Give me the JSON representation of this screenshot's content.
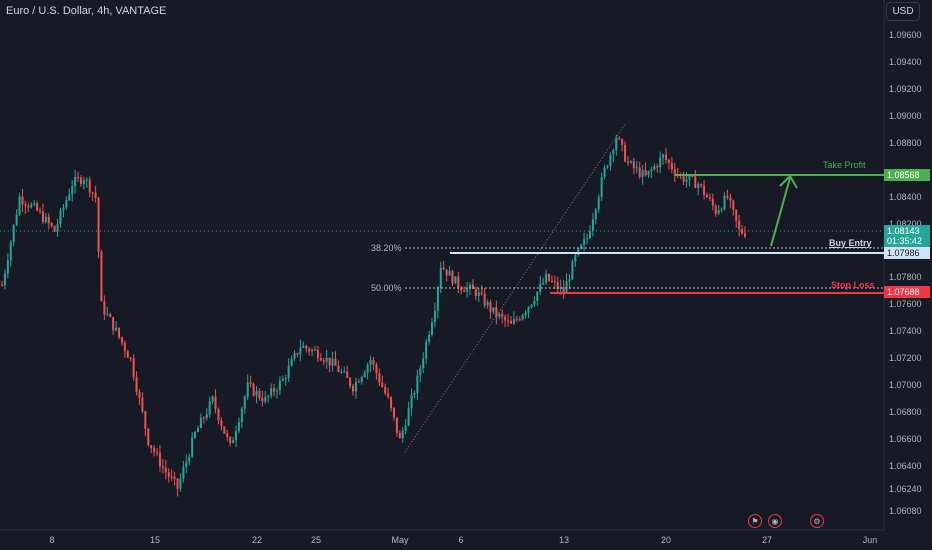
{
  "header": {
    "title": "Euro / U.S. Dollar, 4h, VANTAGE",
    "currency_button": "USD"
  },
  "price_axis": {
    "min": 1.06,
    "max": 1.098,
    "labels": [
      "1.09600",
      "1.09400",
      "1.09200",
      "1.09000",
      "1.08800",
      "1.08400",
      "1.08200",
      "1.07800",
      "1.07600",
      "1.07400",
      "1.07200",
      "1.07000",
      "1.06800",
      "1.06600",
      "1.06400",
      "1.06240",
      "1.06080"
    ]
  },
  "time_axis": {
    "labels": [
      "8",
      "15",
      "22",
      "25",
      "May",
      "6",
      "13",
      "20",
      "27",
      "Jun"
    ]
  },
  "fib_levels": {
    "level_382": "38.20%",
    "level_500": "50.00%"
  },
  "trade": {
    "take_profit_label": "Take Profit",
    "take_profit_price": "1.08568",
    "buy_entry_label": "Buy Entry",
    "buy_entry_price": "1.07986",
    "stop_loss_label": "Stop Loss",
    "stop_loss_price": "1.07688",
    "current_price": "1.08143",
    "countdown": "01:35:42"
  },
  "colors": {
    "background": "#161a25",
    "bullish": "#26a69a",
    "bearish": "#ef5350",
    "take_profit": "#4caf50",
    "stop_loss": "#f23645",
    "entry": "#d1e4f5"
  },
  "icons": {
    "flag": "us-flag-icon",
    "events": "economic-events-icon",
    "settings": "chart-settings-icon"
  }
}
